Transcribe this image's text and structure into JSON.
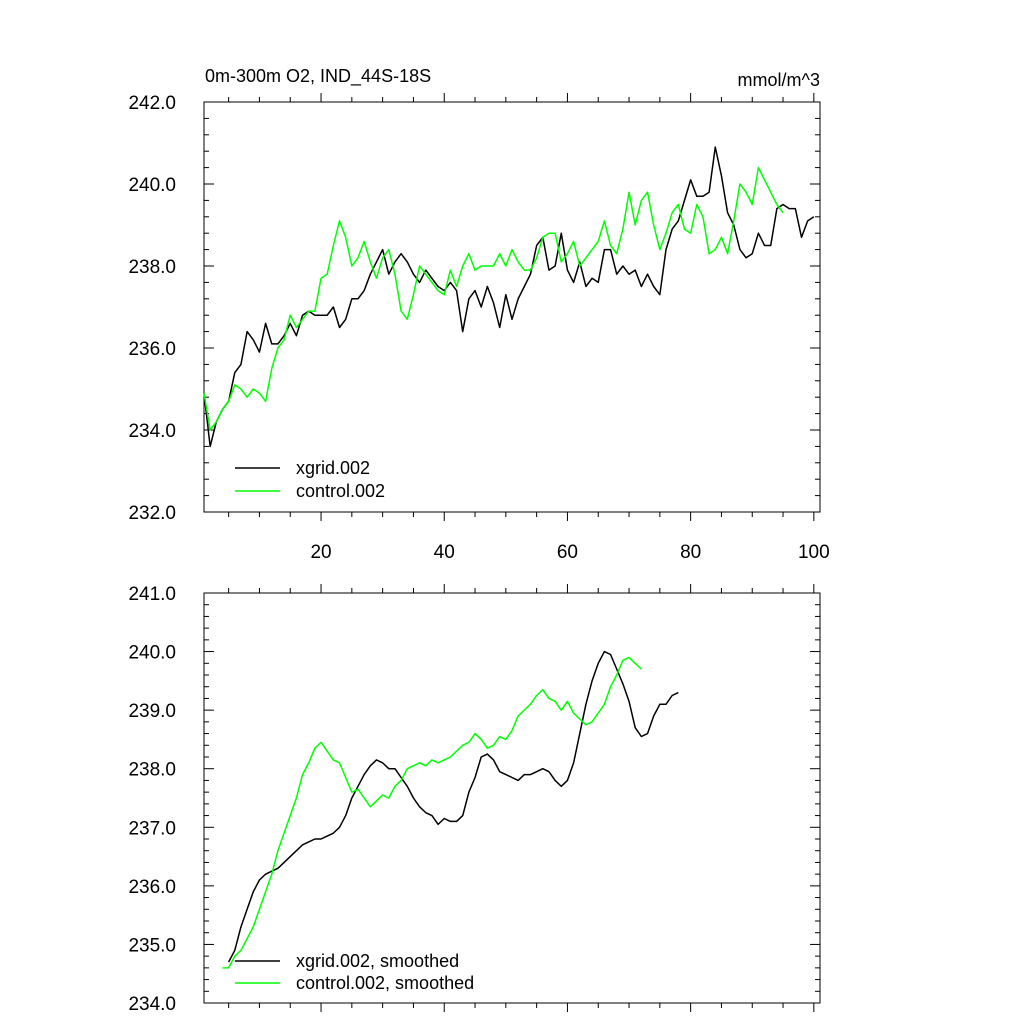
{
  "chart_data": [
    {
      "type": "line",
      "title": "0m-300m O2, IND_44S-18S",
      "units": "mmol/m^3",
      "xlim": [
        1,
        101
      ],
      "ylim": [
        232,
        242
      ],
      "x_ticks": [
        20,
        40,
        60,
        80,
        100
      ],
      "x_tick_labels": [
        "20",
        "40",
        "60",
        "80",
        "100"
      ],
      "y_ticks": [
        232,
        234,
        236,
        238,
        240,
        242
      ],
      "y_tick_labels": [
        "232.0",
        "234.0",
        "236.0",
        "238.0",
        "240.0",
        "242.0"
      ],
      "legend_position": "bottom-left",
      "series": [
        {
          "name": "xgrid.002",
          "color": "#000000",
          "x_start": 1,
          "values": [
            234.9,
            233.6,
            234.2,
            234.5,
            234.7,
            235.4,
            235.6,
            236.4,
            236.2,
            235.9,
            236.6,
            236.1,
            236.1,
            236.3,
            236.6,
            236.3,
            236.8,
            236.9,
            236.8,
            236.8,
            236.8,
            237.0,
            236.5,
            236.7,
            237.2,
            237.2,
            237.4,
            237.8,
            238.1,
            238.4,
            237.8,
            238.1,
            238.3,
            238.1,
            237.8,
            237.6,
            237.9,
            237.7,
            237.5,
            237.4,
            237.6,
            237.4,
            236.4,
            237.2,
            237.4,
            237.0,
            237.5,
            237.1,
            236.5,
            237.3,
            236.7,
            237.2,
            237.5,
            237.8,
            238.5,
            238.7,
            237.9,
            238.0,
            238.8,
            237.9,
            237.6,
            238.1,
            237.5,
            237.7,
            237.6,
            238.4,
            238.4,
            237.8,
            238.0,
            237.8,
            237.9,
            237.5,
            237.8,
            237.5,
            237.3,
            238.4,
            238.9,
            239.1,
            239.6,
            240.1,
            239.7,
            239.7,
            239.8,
            240.9,
            240.2,
            239.3,
            239.0,
            238.4,
            238.2,
            238.3,
            238.8,
            238.5,
            238.5,
            239.4,
            239.5,
            239.4,
            239.4,
            238.7,
            239.1,
            239.2
          ]
        },
        {
          "name": "control.002",
          "color": "#00ff00",
          "x_start": 1,
          "values": [
            234.9,
            234.0,
            234.2,
            234.5,
            234.7,
            235.1,
            235.0,
            234.8,
            235.0,
            234.9,
            234.7,
            235.5,
            236.0,
            236.2,
            236.8,
            236.5,
            236.7,
            236.9,
            236.9,
            237.7,
            237.8,
            238.5,
            239.1,
            238.7,
            238.0,
            238.2,
            238.6,
            238.1,
            237.7,
            238.2,
            238.4,
            237.8,
            236.9,
            236.7,
            237.3,
            238.0,
            237.8,
            237.6,
            237.4,
            237.3,
            237.9,
            237.5,
            238.0,
            238.3,
            237.9,
            238.0,
            238.0,
            238.0,
            238.3,
            238.0,
            238.4,
            238.1,
            237.9,
            237.9,
            238.2,
            238.7,
            238.8,
            238.8,
            238.1,
            238.3,
            238.6,
            238.0,
            238.2,
            238.4,
            238.6,
            239.1,
            238.5,
            238.3,
            238.9,
            239.8,
            239.0,
            239.6,
            239.8,
            239.0,
            238.4,
            238.8,
            239.3,
            239.5,
            238.9,
            238.8,
            239.5,
            239.2,
            238.3,
            238.4,
            238.7,
            238.3,
            239.1,
            240.0,
            239.8,
            239.5,
            240.4,
            240.1,
            239.8,
            239.5,
            239.3
          ]
        }
      ]
    },
    {
      "type": "line",
      "title": "",
      "xlim": [
        1,
        101
      ],
      "ylim": [
        234,
        241
      ],
      "x_ticks": [
        20,
        40,
        60,
        80,
        100
      ],
      "y_ticks": [
        234,
        235,
        236,
        237,
        238,
        239,
        240,
        241
      ],
      "y_tick_labels": [
        "234.0",
        "235.0",
        "236.0",
        "237.0",
        "238.0",
        "239.0",
        "240.0",
        "241.0"
      ],
      "legend_position": "bottom-left",
      "series": [
        {
          "name": "xgrid.002, smoothed",
          "color": "#000000",
          "x_start": 5,
          "values": [
            234.7,
            234.9,
            235.3,
            235.6,
            235.9,
            236.1,
            236.2,
            236.25,
            236.3,
            236.4,
            236.5,
            236.6,
            236.7,
            236.75,
            236.8,
            236.8,
            236.85,
            236.9,
            237.0,
            237.2,
            237.5,
            237.7,
            237.9,
            238.05,
            238.15,
            238.1,
            238.0,
            238.0,
            237.85,
            237.7,
            237.5,
            237.35,
            237.25,
            237.2,
            237.05,
            237.15,
            237.1,
            237.1,
            237.2,
            237.6,
            237.85,
            238.2,
            238.25,
            238.15,
            237.95,
            237.9,
            237.85,
            237.8,
            237.9,
            237.9,
            237.95,
            238.0,
            237.95,
            237.8,
            237.7,
            237.8,
            238.1,
            238.6,
            239.1,
            239.5,
            239.8,
            240.0,
            239.95,
            239.7,
            239.45,
            239.15,
            238.7,
            238.55,
            238.6,
            238.9,
            239.1,
            239.1,
            239.25,
            239.3
          ]
        },
        {
          "name": "control.002, smoothed",
          "color": "#00ff00",
          "x_start": 4,
          "values": [
            234.6,
            234.6,
            234.8,
            234.9,
            235.1,
            235.3,
            235.6,
            235.9,
            236.2,
            236.6,
            236.9,
            237.2,
            237.5,
            237.9,
            238.1,
            238.35,
            238.45,
            238.3,
            238.15,
            238.1,
            237.85,
            237.6,
            237.65,
            237.5,
            237.35,
            237.45,
            237.55,
            237.5,
            237.7,
            237.8,
            238.0,
            238.05,
            238.1,
            238.05,
            238.15,
            238.1,
            238.15,
            238.2,
            238.3,
            238.4,
            238.45,
            238.6,
            238.5,
            238.35,
            238.4,
            238.55,
            238.5,
            238.65,
            238.9,
            239.0,
            239.1,
            239.25,
            239.35,
            239.2,
            239.15,
            239.0,
            239.15,
            238.95,
            238.85,
            238.75,
            238.8,
            238.95,
            239.1,
            239.4,
            239.6,
            239.85,
            239.9,
            239.8,
            239.7
          ]
        }
      ]
    }
  ]
}
